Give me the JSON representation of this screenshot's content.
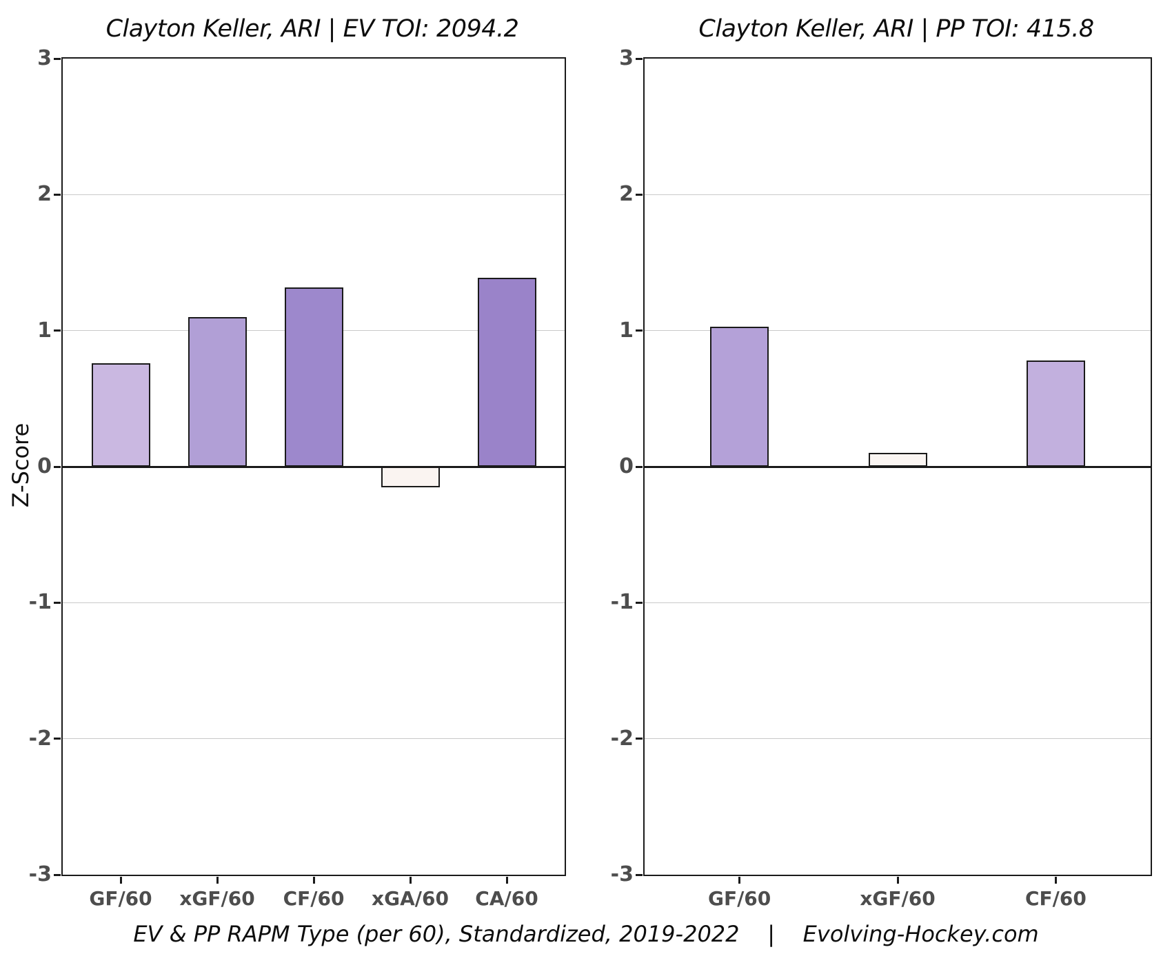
{
  "figure": {
    "y_axis_title": "Z-Score",
    "caption": "EV & PP RAPM Type (per 60), Standardized, 2019-2022    |    Evolving-Hockey.com"
  },
  "chart_data": [
    {
      "type": "bar",
      "title": "Clayton Keller, ARI  |  EV TOI: 2094.2",
      "categories": [
        "GF/60",
        "xGF/60",
        "CF/60",
        "xGA/60",
        "CA/60"
      ],
      "values": [
        0.76,
        1.1,
        1.32,
        -0.15,
        1.39
      ],
      "bar_colors": [
        "#cab8e1",
        "#b19fd6",
        "#9d88cc",
        "#faf4f1",
        "#9a83c9"
      ],
      "bar_outline_color": "#1a1a1a",
      "ylabel": "Z-Score",
      "ylim": [
        -3,
        3
      ],
      "yticks": [
        3,
        2,
        1,
        0,
        -1,
        -2,
        -3
      ],
      "grid": "horizontal gridlines at integer z-scores",
      "legend": "none"
    },
    {
      "type": "bar",
      "title": "Clayton Keller, ARI  |  PP TOI: 415.8",
      "categories": [
        "GF/60",
        "xGF/60",
        "CF/60"
      ],
      "values": [
        1.03,
        0.1,
        0.78
      ],
      "bar_colors": [
        "#b4a1d8",
        "#faf5f2",
        "#c2b0de"
      ],
      "bar_outline_color": "#1a1a1a",
      "ylabel": "",
      "ylim": [
        -3,
        3
      ],
      "yticks": [
        3,
        2,
        1,
        0,
        -1,
        -2,
        -3
      ],
      "grid": "horizontal gridlines at integer z-scores",
      "legend": "none"
    }
  ],
  "colors": {
    "background": "#ffffff",
    "axis_and_spines": "#1a1a1a",
    "gridline": "#c9c9c9",
    "tick_label_text": "#4d4d4d",
    "title_text": "#0d0d0d"
  }
}
